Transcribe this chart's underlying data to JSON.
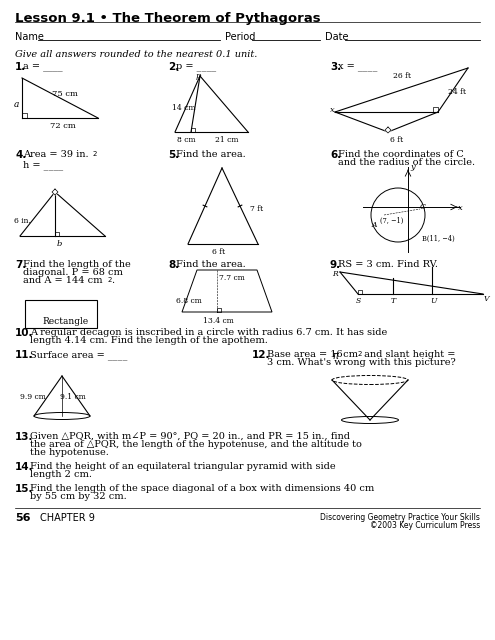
{
  "title": "Lesson 9.1 • The Theorem of Pythagoras",
  "bg_color": "#ffffff",
  "text_color": "#000000",
  "page_number": "56",
  "chapter": "CHAPTER 9",
  "footer_right1": "Discovering Geometry Practice Your Skills",
  "footer_right2": "©2003 Key Curriculum Press"
}
